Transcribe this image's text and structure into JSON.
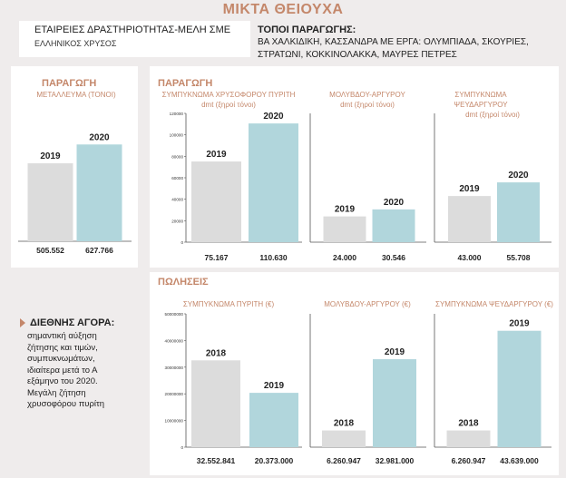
{
  "page": {
    "title": "ΜΙΚΤΑ ΘΕΙΟΥΧΑ",
    "companies_label": "ΕΤΑΙΡΕΙΕΣ ΔΡΑΣΤΗΡΙΟΤΗΤΑΣ-ΜΕΛΗ ΣΜΕ",
    "companies_value": "ΕΛΛΗΝΙΚΟΣ ΧΡΥΣΟΣ",
    "places_label": "ΤΟΠΟΙ ΠΑΡΑΓΩΓΗΣ:",
    "places_value_line1": "ΒΑ ΧΑΛΚΙΔΙΚΗ, ΚΑΣΣΑΝΔΡΑ ΜΕ ΕΡΓΑ: ΟΛΥΜΠΙΑΔΑ, ΣΚΟΥΡΙΕΣ,",
    "places_value_line2": "ΣΤΡΑΤΩΝΙ, ΚΟΚΚΙΝΟΛΑΚΚΑ, ΜΑΥΡΕΣ ΠΕΤΡΕΣ",
    "left_section_title": "ΠΑΡΑΓΩΓΗ",
    "production_section_title": "ΠΑΡΑΓΩΓΗ",
    "sales_section_title": "ΠΩΛΗΣΕΙΣ",
    "market_heading": "ΔΙΕΘΝΗΣ ΑΓΟΡΑ:",
    "market_text": "σημαντική αύξηση ζήτησης και τιμών, συμπυκνωμάτων, ιδιαίτερα μετά το Α εξάμηνο του 2020. Μεγάλη ζήτηση χρυσοφόρου πυρίτη"
  },
  "colors": {
    "accent": "#c4876a",
    "bar_prev": "#dcdcdc",
    "bar_curr": "#b1d6dc"
  },
  "chart_data": [
    {
      "type": "bar",
      "title": "ΜΕΤΑΛΛΕΥΜΑ (ΤΟΝΟΙ)",
      "subtitle": "",
      "categories": [
        "2019",
        "2020"
      ],
      "values": [
        505552,
        627766
      ],
      "value_labels": [
        "505.552",
        "627.766"
      ],
      "ylim": [
        0,
        800000
      ],
      "axis": false,
      "ticks": []
    },
    {
      "type": "bar",
      "title": "ΣΥΜΠΥΚΝΩΜΑ ΧΡΥΣΟΦΟΡΟΥ ΠΥΡΙΤΗ",
      "subtitle": "dmt (ξηροί τόνοι)",
      "categories": [
        "2019",
        "2020"
      ],
      "values": [
        75167,
        110630
      ],
      "value_labels": [
        "75.167",
        "110.630"
      ],
      "ylim": [
        0,
        120000
      ],
      "axis": true,
      "ticks": [
        0,
        20000,
        40000,
        60000,
        80000,
        100000,
        120000
      ]
    },
    {
      "type": "bar",
      "title": "ΜΟΛΥΒΔΟΥ-ΑΡΓΥΡΟΥ",
      "subtitle": "dmt (ξηροί τόνοι)",
      "categories": [
        "2019",
        "2020"
      ],
      "values": [
        24000,
        30546
      ],
      "value_labels": [
        "24.000",
        "30.546"
      ],
      "ylim": [
        0,
        120000
      ],
      "axis": true,
      "ticks": []
    },
    {
      "type": "bar",
      "title": "ΣΥΜΠΥΚΝΩΜΑ ΨΕΥΔΑΡΓΥΡΟΥ",
      "subtitle": "dmt (ξηροί τόνοι)",
      "categories": [
        "2019",
        "2020"
      ],
      "values": [
        43000,
        55708
      ],
      "value_labels": [
        "43.000",
        "55.708"
      ],
      "ylim": [
        0,
        120000
      ],
      "axis": true,
      "ticks": []
    },
    {
      "type": "bar",
      "title": "ΣΥΜΠΥΚΝΩΜΑ ΠΥΡΙΤΗ (€)",
      "subtitle": "",
      "categories": [
        "2018",
        "2019"
      ],
      "values": [
        32552841,
        20373000
      ],
      "value_labels": [
        "32.552.841",
        "20.373.000"
      ],
      "ylim": [
        0,
        50000000
      ],
      "axis": true,
      "ticks": [
        0,
        10000000,
        20000000,
        30000000,
        40000000,
        50000000
      ]
    },
    {
      "type": "bar",
      "title": "ΜΟΛΥΒΔΟΥ-ΑΡΓΥΡΟΥ (€)",
      "subtitle": "",
      "categories": [
        "2018",
        "2019"
      ],
      "values": [
        6260947,
        32981000
      ],
      "value_labels": [
        "6.260.947",
        "32.981.000"
      ],
      "ylim": [
        0,
        50000000
      ],
      "axis": true,
      "ticks": []
    },
    {
      "type": "bar",
      "title": "ΣΥΜΠΥΚΝΩΜΑ ΨΕΥΔΑΡΓΥΡΟΥ (€)",
      "subtitle": "",
      "categories": [
        "2018",
        "2019"
      ],
      "values": [
        6260947,
        43639000
      ],
      "value_labels": [
        "6.260.947",
        "43.639.000"
      ],
      "ylim": [
        0,
        50000000
      ],
      "axis": true,
      "ticks": []
    }
  ]
}
